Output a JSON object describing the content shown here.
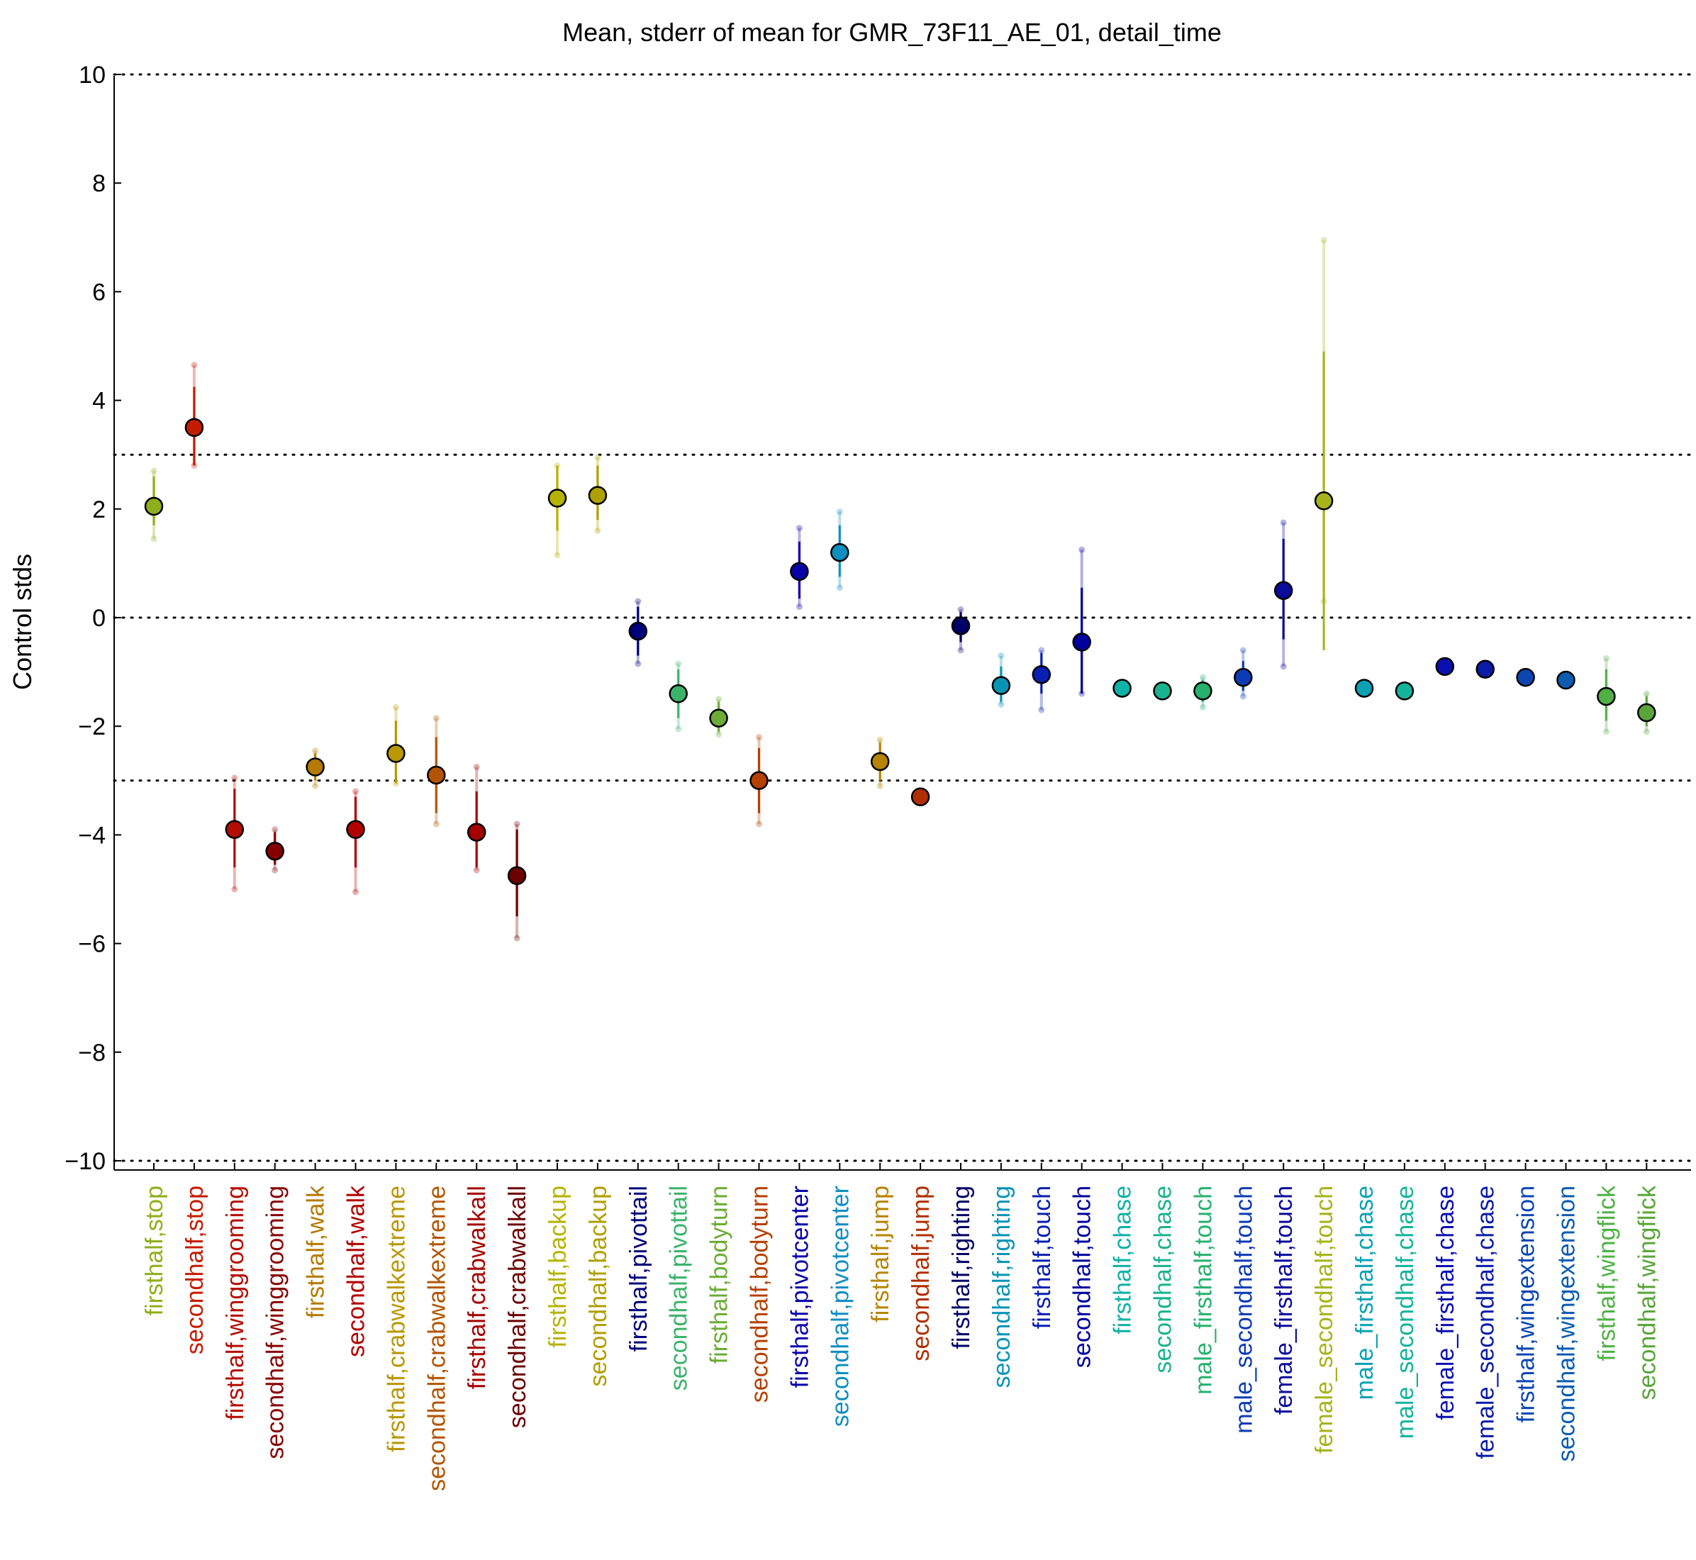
{
  "chart_data": {
    "type": "scatter",
    "title": "Mean, stderr of mean for GMR_73F11_AE_01, detail_time",
    "xlabel": "",
    "ylabel": "Control stds",
    "ylim": [
      -10,
      10
    ],
    "yticks": [
      10,
      8,
      6,
      4,
      2,
      0,
      -2,
      -4,
      -6,
      -8,
      -10
    ],
    "ytick_labels": [
      "10",
      "8",
      "6",
      "4",
      "2",
      "0",
      "−2",
      "−4",
      "−6",
      "−8",
      "−10"
    ],
    "reference_lines": [
      10,
      3,
      0,
      -3,
      -10
    ],
    "grid": false,
    "legend": "none",
    "categories": [
      "firsthalf,stop",
      "secondhalf,stop",
      "firsthalf,winggrooming",
      "secondhalf,winggrooming",
      "firsthalf,walk",
      "secondhalf,walk",
      "firsthalf,crabwalkextreme",
      "secondhalf,crabwalkextreme",
      "firsthalf,crabwalkall",
      "secondhalf,crabwalkall",
      "firsthalf,backup",
      "secondhalf,backup",
      "firsthalf,pivottail",
      "secondhalf,pivottail",
      "firsthalf,bodyturn",
      "secondhalf,bodyturn",
      "firsthalf,pivotcenter",
      "secondhalf,pivotcenter",
      "firsthalf,jump",
      "secondhalf,jump",
      "firsthalf,righting",
      "secondhalf,righting",
      "firsthalf,touch",
      "secondhalf,touch",
      "firsthalf,chase",
      "secondhalf,chase",
      "male_firsthalf,touch",
      "male_secondhalf,touch",
      "female_firsthalf,touch",
      "female_secondhalf,touch",
      "male_firsthalf,chase",
      "male_secondhalf,chase",
      "female_firsthalf,chase",
      "female_secondhalf,chase",
      "firsthalf,wingextension",
      "secondhalf,wingextension",
      "firsthalf,wingflick",
      "secondhalf,wingflick"
    ],
    "means": [
      2.05,
      3.5,
      -3.9,
      -4.3,
      -2.75,
      -3.9,
      -2.5,
      -2.9,
      -3.95,
      -4.75,
      2.2,
      2.25,
      -0.25,
      -1.4,
      -1.85,
      -3.0,
      0.85,
      1.2,
      -2.65,
      -3.3,
      -0.15,
      -1.25,
      -1.05,
      -0.45,
      -1.3,
      -1.35,
      -1.35,
      -1.1,
      0.5,
      2.15,
      -1.3,
      -1.35,
      -0.9,
      -0.95,
      -1.1,
      -1.15,
      -1.45,
      -1.75
    ],
    "sem_low": [
      1.7,
      2.8,
      -4.6,
      -4.55,
      -3.0,
      -4.6,
      -3.05,
      -3.6,
      -4.6,
      -5.5,
      1.6,
      1.8,
      -0.7,
      -1.85,
      -2.1,
      -3.6,
      0.35,
      0.75,
      -3.0,
      -3.35,
      -0.45,
      -1.55,
      -1.4,
      -1.4,
      -1.4,
      -1.45,
      -1.55,
      -1.35,
      -0.4,
      -0.6,
      -1.4,
      -1.45,
      -1.0,
      -1.05,
      -1.2,
      -1.25,
      -1.9,
      -2.0
    ],
    "sem_high": [
      2.6,
      4.25,
      -3.15,
      -3.95,
      -2.5,
      -3.3,
      -1.9,
      -2.2,
      -3.2,
      -3.9,
      2.8,
      2.8,
      0.2,
      -0.95,
      -1.55,
      -2.4,
      1.4,
      1.7,
      -2.3,
      -3.2,
      0.1,
      -0.9,
      -0.65,
      0.55,
      -1.2,
      -1.25,
      -1.15,
      -0.8,
      1.45,
      4.9,
      -1.2,
      -1.25,
      -0.8,
      -0.85,
      -1.0,
      -1.05,
      -0.95,
      -1.45
    ],
    "extent_low": [
      1.45,
      2.8,
      -5.0,
      -4.65,
      -3.1,
      -5.05,
      -3.05,
      -3.8,
      -4.65,
      -5.9,
      1.15,
      1.6,
      -0.85,
      -2.05,
      -2.15,
      -3.8,
      0.2,
      0.55,
      -3.1,
      -3.35,
      -0.6,
      -1.6,
      -1.7,
      -1.4,
      -1.4,
      -1.45,
      -1.65,
      -1.45,
      -0.9,
      0.3,
      -1.4,
      -1.45,
      -1.0,
      -1.05,
      -1.2,
      -1.25,
      -2.1,
      -2.1
    ],
    "extent_high": [
      2.7,
      4.65,
      -2.95,
      -3.9,
      -2.45,
      -3.2,
      -1.65,
      -1.85,
      -2.75,
      -3.8,
      2.8,
      2.95,
      0.3,
      -0.85,
      -1.5,
      -2.2,
      1.65,
      1.95,
      -2.25,
      -3.2,
      0.15,
      -0.7,
      -0.6,
      1.25,
      -1.2,
      -1.25,
      -1.1,
      -0.6,
      1.75,
      6.95,
      -1.2,
      -1.25,
      -0.8,
      -0.85,
      -1.0,
      -1.05,
      -0.75,
      -1.4
    ],
    "colors": [
      "#8fae1b",
      "#c41c00",
      "#b50c00",
      "#870000",
      "#b57a00",
      "#b20000",
      "#b89700",
      "#b35500",
      "#a50000",
      "#6c0000",
      "#b6b300",
      "#b09f00",
      "#00007a",
      "#3bb36b",
      "#6cac34",
      "#b54000",
      "#0a00a8",
      "#0f8ec0",
      "#b78400",
      "#b02f00",
      "#000066",
      "#0994b6",
      "#0a20b2",
      "#00009e",
      "#10b1a6",
      "#19b38d",
      "#26b16f",
      "#0d3bb4",
      "#0a0a9c",
      "#a6b31a",
      "#0aa2b4",
      "#14b39b",
      "#0b0fb0",
      "#0a1ba8",
      "#0b46b3",
      "#0a5cb1",
      "#4fb144",
      "#5aa53a"
    ]
  }
}
